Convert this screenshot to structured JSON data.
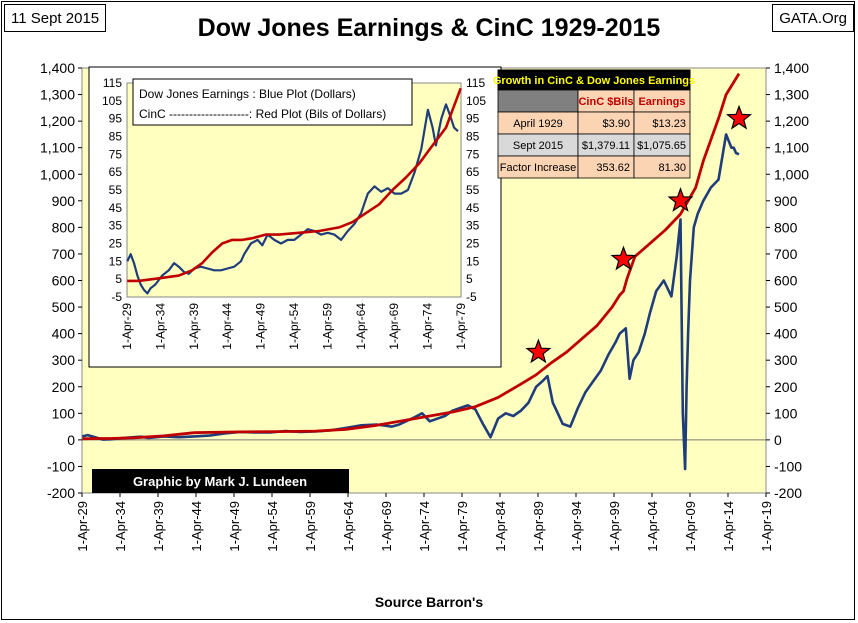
{
  "date_tag": "11 Sept 2015",
  "site_tag": "GATA.Org",
  "title": "Dow Jones Earnings & CinC 1929-2015",
  "credit": "Graphic by Mark J. Lundeen",
  "source": "Source Barron's",
  "colors": {
    "plot_bg": "#FFFFC0",
    "earnings": "#1F3D7A",
    "cinc": "#C00000",
    "star": "#FF0000",
    "table_header": "#808080",
    "table_title_bg": "#000000",
    "table_title_fg": "#FFFF00",
    "table_cell": "#FBD4B4",
    "table_row2": "#D9D9D9"
  },
  "chart_data": [
    {
      "type": "line",
      "name": "main",
      "title": "Dow Jones Earnings & CinC 1929-2015",
      "xlabel": "Source Barron's",
      "x_ticks": [
        "1-Apr-29",
        "1-Apr-34",
        "1-Apr-39",
        "1-Apr-44",
        "1-Apr-49",
        "1-Apr-54",
        "1-Apr-59",
        "1-Apr-64",
        "1-Apr-69",
        "1-Apr-74",
        "1-Apr-79",
        "1-Apr-84",
        "1-Apr-89",
        "1-Apr-94",
        "1-Apr-99",
        "1-Apr-04",
        "1-Apr-09",
        "1-Apr-14",
        "1-Apr-19"
      ],
      "xlim": [
        1929.25,
        2019.25
      ],
      "ylim": [
        -200,
        1400
      ],
      "y_ticks": [
        "-200",
        "-100",
        "0",
        "100",
        "200",
        "300",
        "400",
        "500",
        "600",
        "700",
        "800",
        "900",
        "1,000",
        "1,100",
        "1,200",
        "1,300",
        "1,400"
      ],
      "series": [
        {
          "label": "Dow Jones Earnings (Dollars)",
          "x": [
            1929.3,
            1930,
            1931,
            1932,
            1933,
            1935,
            1937,
            1938,
            1940,
            1942,
            1944,
            1946,
            1948,
            1950,
            1952,
            1954,
            1956,
            1958,
            1960,
            1962,
            1964,
            1966,
            1968,
            1970,
            1971,
            1973,
            1974,
            1975,
            1977,
            1978,
            1979,
            1980,
            1981,
            1982,
            1983,
            1984,
            1985,
            1986,
            1987,
            1988,
            1989,
            1989.8,
            1990.5,
            1991.2,
            1991.7,
            1992.5,
            1993.5,
            1994.5,
            1995.5,
            1996.5,
            1997.5,
            1998.5,
            1999.5,
            2000,
            2000.8,
            2001.3,
            2001.8,
            2002.5,
            2003.3,
            2004,
            2004.8,
            2005.8,
            2006.8,
            2007.5,
            2008.0,
            2008.3,
            2008.6,
            2008.8,
            2009.0,
            2009.25,
            2009.5,
            2009.75,
            2010.25,
            2011,
            2012,
            2013,
            2014,
            2014.7,
            2015.0,
            2015.3,
            2015.7
          ],
          "y": [
            13,
            18,
            10,
            1,
            2,
            8,
            12,
            7,
            13,
            10,
            13,
            16,
            24,
            30,
            28,
            28,
            33,
            30,
            32,
            36,
            45,
            55,
            58,
            50,
            58,
            85,
            100,
            70,
            90,
            110,
            120,
            130,
            115,
            60,
            10,
            80,
            100,
            90,
            110,
            140,
            200,
            220,
            240,
            140,
            110,
            60,
            50,
            120,
            180,
            220,
            260,
            320,
            370,
            400,
            420,
            230,
            300,
            330,
            400,
            480,
            560,
            600,
            540,
            690,
            830,
            100,
            -110,
            200,
            400,
            600,
            700,
            800,
            850,
            900,
            950,
            980,
            1150,
            1100,
            1100,
            1080,
            1075
          ]
        },
        {
          "label": "CinC (Bils of Dollars)",
          "x": [
            1929.3,
            1931,
            1933,
            1936,
            1940,
            1944,
            1946,
            1950,
            1955,
            1960,
            1964,
            1968,
            1972,
            1975,
            1978,
            1981,
            1984,
            1987,
            1989,
            1991,
            1993,
            1995,
            1997,
            1999,
            2000,
            2000.5,
            2001,
            2002,
            2004,
            2006,
            2008,
            2009,
            2010,
            2011,
            2012,
            2013,
            2014,
            2015.7
          ],
          "y": [
            4,
            5,
            5,
            8,
            15,
            27,
            28,
            30,
            31,
            33,
            40,
            55,
            75,
            90,
            105,
            125,
            160,
            210,
            245,
            290,
            330,
            380,
            430,
            500,
            545,
            560,
            610,
            690,
            740,
            790,
            850,
            900,
            950,
            1050,
            1130,
            1210,
            1300,
            1379
          ]
        }
      ]
    },
    {
      "type": "line",
      "name": "inset",
      "legend": [
        {
          "name": "Dow Jones Earnings",
          "sep": " : ",
          "desc": "Blue Plot (Dollars)"
        },
        {
          "name": "CinC",
          "sep": " --------------------: ",
          "desc": "Red Plot (Bils of Dollars)"
        }
      ],
      "x_ticks": [
        "1-Apr-29",
        "1-Apr-34",
        "1-Apr-39",
        "1-Apr-44",
        "1-Apr-49",
        "1-Apr-54",
        "1-Apr-59",
        "1-Apr-64",
        "1-Apr-69",
        "1-Apr-74",
        "1-Apr-79"
      ],
      "xlim": [
        1929.25,
        1979.25
      ],
      "ylim": [
        -5,
        115
      ],
      "y_ticks": [
        "-5",
        "5",
        "15",
        "25",
        "35",
        "45",
        "55",
        "65",
        "75",
        "85",
        "95",
        "105",
        "115"
      ],
      "series": [
        {
          "label": "Dow Jones Earnings",
          "x": [
            1929.3,
            1929.8,
            1930.3,
            1930.8,
            1931.3,
            1931.8,
            1932.3,
            1932.8,
            1933.5,
            1934.5,
            1935.5,
            1936.3,
            1937.0,
            1937.8,
            1938.5,
            1939.3,
            1940.3,
            1941.3,
            1942.3,
            1943.3,
            1944.3,
            1945.3,
            1946.3,
            1946.8,
            1947.8,
            1948.8,
            1949.5,
            1950.3,
            1951.3,
            1952.3,
            1953.3,
            1954.3,
            1955.3,
            1956.3,
            1957.3,
            1958.3,
            1959.3,
            1960.3,
            1961.3,
            1962.3,
            1963.3,
            1964.3,
            1965.3,
            1966.3,
            1967.3,
            1968.3,
            1969.3,
            1970.3,
            1971.3,
            1972.3,
            1973.3,
            1974.3,
            1975.0,
            1975.5,
            1976.3,
            1977.0,
            1977.6,
            1978.2,
            1978.8
          ],
          "y": [
            15,
            19,
            14,
            7,
            2,
            -1,
            -3,
            0,
            2,
            7,
            10,
            14,
            12,
            9,
            8,
            11,
            12,
            11,
            10,
            10,
            11,
            12,
            15,
            19,
            25,
            27,
            24,
            30,
            27,
            25,
            27,
            27,
            30,
            33,
            32,
            30,
            31,
            30,
            27,
            32,
            36,
            42,
            53,
            57,
            54,
            56,
            53,
            53,
            55,
            65,
            78,
            100,
            90,
            80,
            95,
            103,
            97,
            90,
            88
          ]
        },
        {
          "label": "CinC",
          "x": [
            1929.3,
            1931,
            1933,
            1935,
            1937,
            1939,
            1940.5,
            1942,
            1943.5,
            1945,
            1946.5,
            1948,
            1950,
            1952,
            1955,
            1958,
            1961,
            1963,
            1965,
            1967,
            1969,
            1971,
            1973,
            1975,
            1977,
            1978,
            1979.2
          ],
          "y": [
            4,
            4,
            5,
            6,
            7,
            10,
            14,
            20,
            25,
            27,
            27,
            28,
            30,
            30,
            31,
            32,
            34,
            37,
            42,
            47,
            55,
            62,
            70,
            80,
            90,
            100,
            112
          ]
        }
      ]
    },
    {
      "type": "table",
      "name": "growth",
      "title": "Growth in CinC & Dow Jones Earnings",
      "columns": [
        "",
        "CinC $Bils",
        "Earnings"
      ],
      "rows": [
        [
          "April 1929",
          "$3.90",
          "$13.23"
        ],
        [
          "Sept 2015",
          "$1,379.11",
          "$1,075.65"
        ],
        [
          "Factor Increase",
          "353.62",
          "81.30"
        ]
      ]
    }
  ],
  "stars": [
    {
      "x": 1989.3,
      "y": 330
    },
    {
      "x": 2000.5,
      "y": 680
    },
    {
      "x": 2008.0,
      "y": 900
    },
    {
      "x": 2015.7,
      "y": 1210
    }
  ]
}
